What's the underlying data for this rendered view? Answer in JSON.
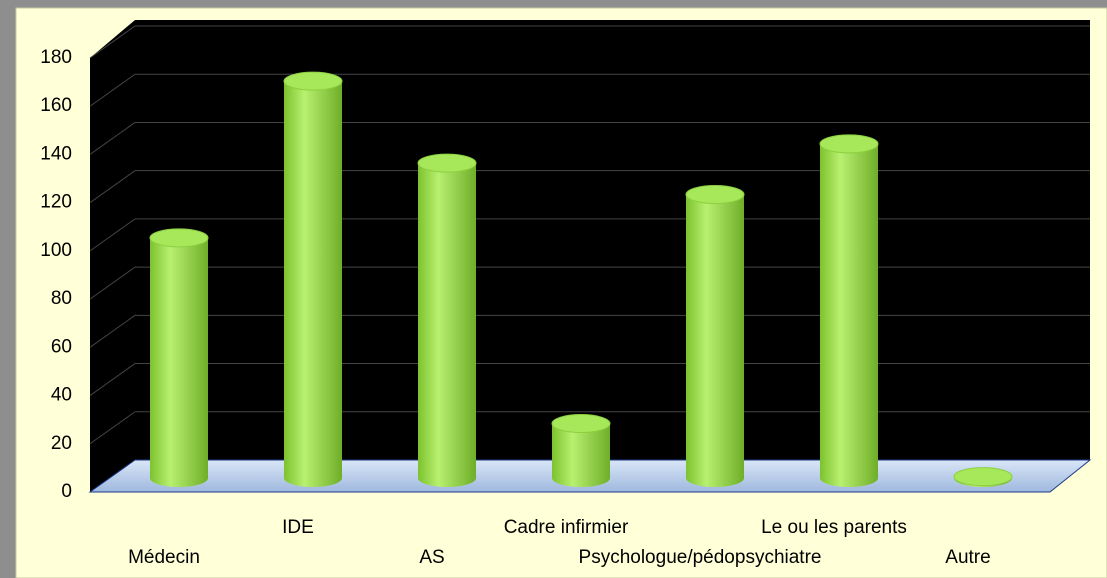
{
  "chart_data": {
    "type": "bar3d",
    "categories": [
      "Médecin",
      "IDE",
      "AS",
      "Cadre infirmier",
      "Psychologue/pédopsychiatre",
      "Le ou les parents",
      "Autre"
    ],
    "values": [
      100,
      165,
      131,
      23,
      118,
      139,
      1
    ],
    "color": "#9be04a",
    "ylim": [
      0,
      180
    ],
    "yticks": [
      0,
      20,
      40,
      60,
      80,
      100,
      120,
      140,
      160,
      180
    ],
    "grid": true
  }
}
